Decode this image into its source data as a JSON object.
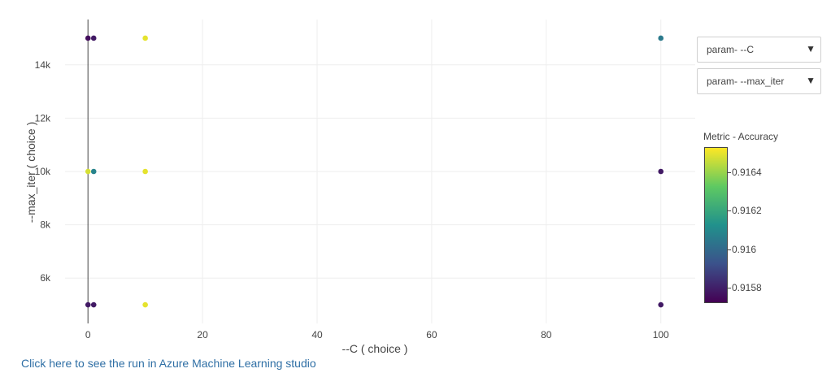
{
  "chart_data": {
    "type": "scatter",
    "xlabel": "--C ( choice )",
    "ylabel": "--max_iter ( choice )",
    "xlim": [
      -4,
      106
    ],
    "ylim": [
      4300,
      15700
    ],
    "x_ticks": [
      0,
      20,
      40,
      60,
      80,
      100
    ],
    "x_tick_labels": [
      "0",
      "20",
      "40",
      "60",
      "80",
      "100"
    ],
    "y_ticks": [
      6000,
      8000,
      10000,
      12000,
      14000
    ],
    "y_tick_labels": [
      "6k",
      "8k",
      "10k",
      "12k",
      "14k"
    ],
    "grid": true,
    "colorscale": "viridis",
    "colorbar": {
      "title": "Metric - Accuracy",
      "range": [
        0.91572,
        0.91653
      ],
      "ticks": [
        0.9158,
        0.916,
        0.9162,
        0.9164
      ],
      "tick_labels": [
        "0.9158",
        "0.916",
        "0.9162",
        "0.9164"
      ]
    },
    "points": [
      {
        "x": 0.01,
        "y": 15000,
        "accuracy": 0.91575
      },
      {
        "x": 1,
        "y": 15000,
        "accuracy": 0.91578
      },
      {
        "x": 10,
        "y": 15000,
        "accuracy": 0.9165
      },
      {
        "x": 100,
        "y": 15000,
        "accuracy": 0.91605
      },
      {
        "x": 0.01,
        "y": 10000,
        "accuracy": 0.91648
      },
      {
        "x": 1,
        "y": 10000,
        "accuracy": 0.91608
      },
      {
        "x": 10,
        "y": 10000,
        "accuracy": 0.9165
      },
      {
        "x": 100,
        "y": 10000,
        "accuracy": 0.91578
      },
      {
        "x": 0.01,
        "y": 5000,
        "accuracy": 0.91578
      },
      {
        "x": 1,
        "y": 5000,
        "accuracy": 0.91578
      },
      {
        "x": 10,
        "y": 5000,
        "accuracy": 0.9165
      },
      {
        "x": 100,
        "y": 5000,
        "accuracy": 0.91578
      }
    ]
  },
  "controls": {
    "x_param_label": "param- --C",
    "y_param_label": "param- --max_iter",
    "arrow_glyph": "▼"
  },
  "link": {
    "text": "Click here to see the run in Azure Machine Learning studio"
  }
}
